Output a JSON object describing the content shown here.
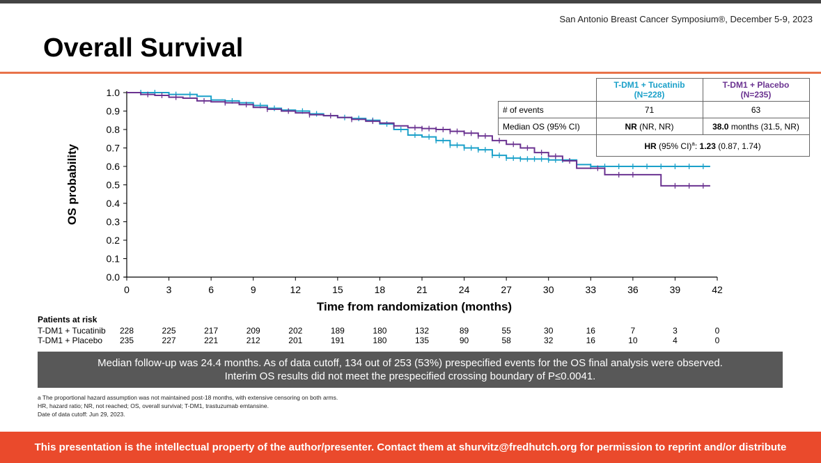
{
  "header": {
    "conference": "San Antonio Breast Cancer Symposium®, December 5-9, 2023",
    "title": "Overall Survival"
  },
  "colors": {
    "tucatinib": "#1aa0c9",
    "placebo": "#6a3290",
    "accent": "#e8734a",
    "banner": "#ea4a2c"
  },
  "chart_data": {
    "type": "line",
    "title": "Overall Survival",
    "xlabel": "Time from randomization (months)",
    "ylabel": "OS probability",
    "xlim": [
      0,
      42
    ],
    "ylim": [
      0.0,
      1.0
    ],
    "x_ticks": [
      "0",
      "3",
      "6",
      "9",
      "12",
      "15",
      "18",
      "21",
      "24",
      "27",
      "30",
      "33",
      "36",
      "39",
      "42"
    ],
    "y_ticks": [
      "0.0",
      "0.1",
      "0.2",
      "0.3",
      "0.4",
      "0.5",
      "0.6",
      "0.7",
      "0.8",
      "0.9",
      "1.0"
    ],
    "series": [
      {
        "name": "T-DM1 + Tucatinib",
        "color": "#1aa0c9",
        "points": [
          [
            0,
            1.0
          ],
          [
            1.5,
            1.0
          ],
          [
            3,
            0.99
          ],
          [
            5,
            0.98
          ],
          [
            6,
            0.96
          ],
          [
            7,
            0.955
          ],
          [
            8,
            0.945
          ],
          [
            9,
            0.93
          ],
          [
            10,
            0.915
          ],
          [
            11,
            0.905
          ],
          [
            12,
            0.9
          ],
          [
            13,
            0.885
          ],
          [
            14,
            0.875
          ],
          [
            15,
            0.865
          ],
          [
            16,
            0.86
          ],
          [
            17,
            0.85
          ],
          [
            18,
            0.83
          ],
          [
            19,
            0.8
          ],
          [
            20,
            0.77
          ],
          [
            21,
            0.76
          ],
          [
            22,
            0.74
          ],
          [
            23,
            0.715
          ],
          [
            24,
            0.7
          ],
          [
            25,
            0.69
          ],
          [
            26,
            0.66
          ],
          [
            27,
            0.645
          ],
          [
            28,
            0.64
          ],
          [
            30,
            0.635
          ],
          [
            32,
            0.61
          ],
          [
            33,
            0.6
          ],
          [
            41.5,
            0.6
          ]
        ],
        "censor_x": [
          1,
          2,
          3.5,
          4.5,
          7.5,
          9.5,
          10.5,
          12.5,
          13.5,
          15.5,
          16.5,
          17.5,
          18.5,
          19.5,
          20.5,
          21.5,
          22,
          22.5,
          23,
          23.5,
          24,
          24.5,
          25,
          25.5,
          26,
          26.5,
          27,
          27.5,
          28,
          28.5,
          29,
          29.5,
          30,
          30.5,
          31,
          32,
          33,
          34,
          35,
          36,
          37,
          38,
          39,
          40,
          41
        ]
      },
      {
        "name": "T-DM1 + Placebo",
        "color": "#6a3290",
        "points": [
          [
            0,
            1.0
          ],
          [
            1,
            0.99
          ],
          [
            2,
            0.985
          ],
          [
            3,
            0.975
          ],
          [
            4,
            0.97
          ],
          [
            5,
            0.955
          ],
          [
            6,
            0.95
          ],
          [
            7,
            0.945
          ],
          [
            8,
            0.935
          ],
          [
            9,
            0.92
          ],
          [
            10,
            0.91
          ],
          [
            11,
            0.9
          ],
          [
            12,
            0.89
          ],
          [
            13,
            0.88
          ],
          [
            14,
            0.875
          ],
          [
            15,
            0.865
          ],
          [
            16,
            0.855
          ],
          [
            17,
            0.845
          ],
          [
            18,
            0.835
          ],
          [
            19,
            0.82
          ],
          [
            20,
            0.81
          ],
          [
            21,
            0.805
          ],
          [
            22,
            0.8
          ],
          [
            23,
            0.79
          ],
          [
            24,
            0.78
          ],
          [
            25,
            0.765
          ],
          [
            26,
            0.74
          ],
          [
            27,
            0.72
          ],
          [
            28,
            0.7
          ],
          [
            29,
            0.675
          ],
          [
            30,
            0.655
          ],
          [
            31,
            0.63
          ],
          [
            32,
            0.59
          ],
          [
            33,
            0.59
          ],
          [
            34,
            0.555
          ],
          [
            37,
            0.555
          ],
          [
            38,
            0.495
          ],
          [
            41.5,
            0.495
          ]
        ],
        "censor_x": [
          1.5,
          2.5,
          3.5,
          5.5,
          7,
          8.5,
          10,
          11.5,
          13,
          14.5,
          16,
          17.5,
          19,
          20.5,
          21,
          21.5,
          22,
          22.5,
          23,
          23.5,
          24,
          24.5,
          25,
          25.5,
          26.5,
          27.5,
          28.5,
          29.5,
          30.5,
          31.5,
          33.5,
          35,
          36,
          39,
          40,
          41
        ]
      }
    ],
    "stats_table": {
      "col_tucatinib": "T-DM1 + Tucatinib",
      "col_tucatinib_n": "(N=228)",
      "col_placebo": "T-DM1 + Placebo",
      "col_placebo_n": "(N=235)",
      "events_label": "# of events",
      "events_tucatinib": "71",
      "events_placebo": "63",
      "median_label": "Median OS (95% CI)",
      "median_tucatinib_bold": "NR",
      "median_tucatinib_rest": " (NR, NR)",
      "median_placebo_bold": "38.0",
      "median_placebo_rest": " months (31.5, NR)",
      "hr_bold": "HR",
      "hr_mid": " (95% CI)",
      "hr_sup": "a",
      "hr_colon": ": ",
      "hr_value": "1.23",
      "hr_ci": " (0.87, 1.74)"
    },
    "risk_table": {
      "title": "Patients at risk",
      "rows": [
        {
          "label": "T-DM1 + Tucatinib",
          "values": [
            "228",
            "225",
            "217",
            "209",
            "202",
            "189",
            "180",
            "132",
            "89",
            "55",
            "30",
            "16",
            "7",
            "3",
            "0"
          ]
        },
        {
          "label": "T-DM1 + Placebo",
          "values": [
            "235",
            "227",
            "221",
            "212",
            "201",
            "191",
            "180",
            "135",
            "90",
            "58",
            "32",
            "16",
            "10",
            "4",
            "0"
          ]
        }
      ]
    }
  },
  "note": {
    "line1": "Median follow-up was 24.4 months. As of data cutoff, 134 out of 253 (53%) prespecified events for the OS final analysis were observed.",
    "line2": "Interim OS results did not meet the prespecified crossing boundary of P≤0.0041."
  },
  "footnotes": [
    "a The proportional hazard assumption was not maintained post-18 months, with extensive censoring on both arms.",
    "HR, hazard ratio; NR, not reached; OS, overall survival; T-DM1, trastuzumab emtansine.",
    "Date of data cutoff: Jun 29, 2023."
  ],
  "banner": "This presentation is the intellectual property of the author/presenter. Contact them at shurvitz@fredhutch.org for permission to reprint and/or distribute"
}
